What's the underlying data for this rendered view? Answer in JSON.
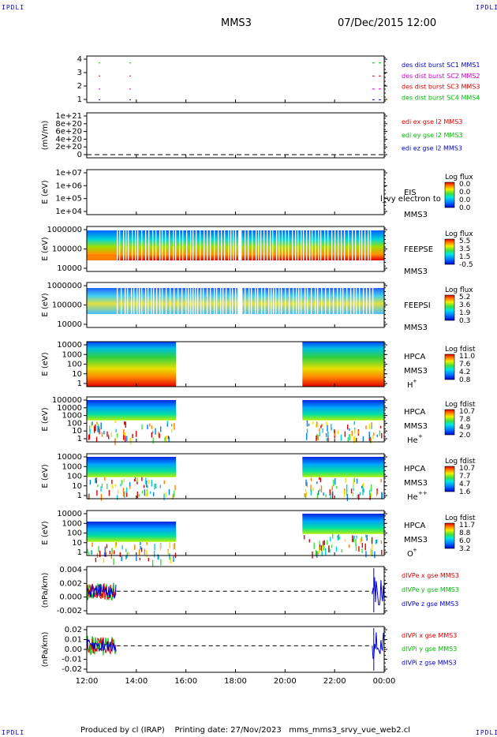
{
  "header": {
    "mission": "MMS3",
    "date": "07/Dec/2015 12:00"
  },
  "corner_label": "IPDLI",
  "footer": {
    "produced_by": "Produced by cl (IRAP)",
    "print_label": "Printing date: 27/Nov/2023",
    "filename": "mms_mms3_srvy_vue_web2.cl"
  },
  "time_axis": [
    "12:00",
    "14:00",
    "16:00",
    "18:00",
    "20:00",
    "22:00",
    "00:00"
  ],
  "colors": {
    "red": "#dd0000",
    "green": "#00bb00",
    "blue": "#0000cc",
    "magenta": "#cc00cc"
  },
  "chart_data": [
    {
      "type": "scatter",
      "name": "burst",
      "yticks": [
        "4",
        "3",
        "2",
        "1"
      ],
      "legend": [
        {
          "text": "des dist burst SC1 MMS1",
          "color": "#0000cc"
        },
        {
          "text": "des dist burst SC2 MMS2",
          "color": "#cc00cc"
        },
        {
          "text": "des dist burst SC3 MMS3",
          "color": "#dd0000"
        },
        {
          "text": "des dist burst SC4 MMS4",
          "color": "#00bb00"
        }
      ]
    },
    {
      "type": "line",
      "name": "edi",
      "ylabel": "(mV/m)",
      "yticks": [
        "1e+21",
        "8e+20",
        "6e+20",
        "4e+20",
        "2e+20",
        "0"
      ],
      "legend": [
        {
          "text": "edi ex gse l2 MMS3",
          "color": "#dd0000"
        },
        {
          "text": "edi ey gse l2 MMS3",
          "color": "#00bb00"
        },
        {
          "text": "edi ez gse l2 MMS3",
          "color": "#0000cc"
        }
      ]
    },
    {
      "type": "heatmap",
      "name": "eis",
      "ylabel": "E (eV)",
      "yticks": [
        "1e+07",
        "1e+06",
        "1e+05",
        "1e+04"
      ],
      "instrument": "EIS",
      "spacecraft": "MMS3",
      "overlay_text": "l_vy electron to",
      "colorbar": {
        "title": "Log flux",
        "ticks": [
          "0.0",
          "0.0",
          "0.0",
          "0.0"
        ]
      }
    },
    {
      "type": "heatmap",
      "name": "feepse",
      "ylabel": "E (eV)",
      "yticks": [
        "1000000",
        "100000",
        "10000"
      ],
      "instrument": "FEEPSE",
      "spacecraft": "MMS3",
      "colorbar": {
        "title": "Log flux",
        "ticks": [
          "5.5",
          "3.5",
          "1.5",
          "-0.5"
        ]
      }
    },
    {
      "type": "heatmap",
      "name": "feepsi",
      "ylabel": "E (eV)",
      "yticks": [
        "1000000",
        "100000",
        "10000"
      ],
      "instrument": "FEEPSI",
      "spacecraft": "MMS3",
      "colorbar": {
        "title": "Log flux",
        "ticks": [
          "5.2",
          "3.6",
          "1.9",
          "0.3"
        ]
      }
    },
    {
      "type": "heatmap",
      "name": "hpca-h",
      "ylabel": "E (eV)",
      "yticks": [
        "10000",
        "1000",
        "100",
        "10",
        "1"
      ],
      "instrument": "HPCA",
      "spacecraft": "MMS3",
      "species": "H",
      "charge": "+",
      "colorbar": {
        "title": "Log fdist",
        "ticks": [
          "11.0",
          "7.6",
          "4.2",
          "0.8"
        ]
      }
    },
    {
      "type": "heatmap",
      "name": "hpca-he",
      "ylabel": "E (eV)",
      "yticks": [
        "100000",
        "10000",
        "1000",
        "100",
        "10",
        "1"
      ],
      "instrument": "HPCA",
      "spacecraft": "MMS3",
      "species": "He",
      "charge": "+",
      "colorbar": {
        "title": "Log fdist",
        "ticks": [
          "10.7",
          "7.8",
          "4.9",
          "2.0"
        ]
      }
    },
    {
      "type": "heatmap",
      "name": "hpca-hepp",
      "ylabel": "E (eV)",
      "yticks": [
        "10000",
        "1000",
        "100",
        "10",
        "1"
      ],
      "instrument": "HPCA",
      "spacecraft": "MMS3",
      "species": "He",
      "charge": "++",
      "colorbar": {
        "title": "Log fdist",
        "ticks": [
          "10.7",
          "7.7",
          "4.7",
          "1.6"
        ]
      }
    },
    {
      "type": "heatmap",
      "name": "hpca-o",
      "ylabel": "E (eV)",
      "yticks": [
        "10000",
        "1000",
        "100",
        "10",
        "1"
      ],
      "instrument": "HPCA",
      "spacecraft": "MMS3",
      "species": "O",
      "charge": "+",
      "colorbar": {
        "title": "Log fdist",
        "ticks": [
          "11.7",
          "8.8",
          "6.0",
          "3.2"
        ]
      }
    },
    {
      "type": "line",
      "name": "divpe",
      "ylabel": "(nPa/km)",
      "yticks": [
        "0.004",
        "0.002",
        "0.000",
        "-0.002"
      ],
      "legend": [
        {
          "text": "dIVPe x gse MMS3",
          "color": "#dd0000"
        },
        {
          "text": "dIVPe y gse MMS3",
          "color": "#00bb00"
        },
        {
          "text": "dIVPe z gse MMS3",
          "color": "#0000cc"
        }
      ]
    },
    {
      "type": "line",
      "name": "divpi",
      "ylabel": "(nPa/km)",
      "yticks": [
        "0.02",
        "0.01",
        "0.00",
        "-0.01",
        "-0.02"
      ],
      "legend": [
        {
          "text": "dIVPi x gse MMS3",
          "color": "#dd0000"
        },
        {
          "text": "dIVPi y gse MMS3",
          "color": "#00bb00"
        },
        {
          "text": "dIVPi z gse MMS3",
          "color": "#0000cc"
        }
      ]
    }
  ]
}
